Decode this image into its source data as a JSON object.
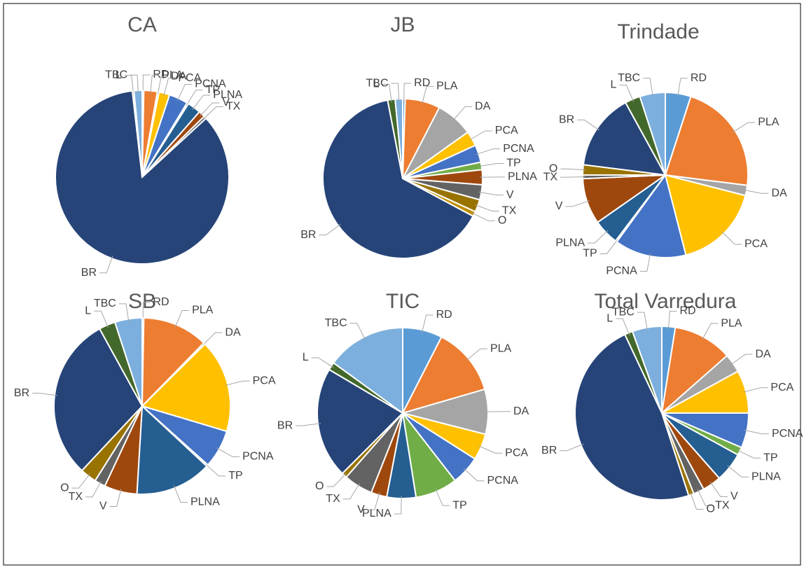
{
  "chart_data": [
    {
      "type": "pie",
      "title": "CA",
      "categories": [
        "RD",
        "PLA",
        "DA",
        "PCA",
        "PCNA",
        "TP",
        "PLNA",
        "V",
        "TX",
        "BR",
        "L",
        "TBC"
      ],
      "values": [
        0.3,
        2.5,
        0.3,
        2,
        3.5,
        0.3,
        2.5,
        1.2,
        0.5,
        84.6,
        0.3,
        1.5
      ],
      "colors": [
        "#5b9bd5",
        "#ed7d31",
        "#a5a5a5",
        "#ffc000",
        "#4472c4",
        "#70ad47",
        "#255e91",
        "#9e480e",
        "#636363",
        "#264478",
        "#43682b",
        "#7cafdd"
      ]
    },
    {
      "type": "pie",
      "title": "JB",
      "categories": [
        "RD",
        "PLA",
        "DA",
        "PCA",
        "PCNA",
        "TP",
        "PLNA",
        "V",
        "TX",
        "O",
        "BR",
        "L",
        "TBC"
      ],
      "values": [
        0.5,
        7,
        7.5,
        3,
        3.5,
        1.5,
        3,
        3,
        2.5,
        1,
        63.5,
        1.5,
        1.5
      ],
      "colors": [
        "#5b9bd5",
        "#ed7d31",
        "#a5a5a5",
        "#ffc000",
        "#4472c4",
        "#70ad47",
        "#9e480e",
        "#636363",
        "#997300",
        "#bf8f00",
        "#264478",
        "#43682b",
        "#7cafdd"
      ]
    },
    {
      "type": "pie",
      "title": "Trindade",
      "categories": [
        "RD",
        "PLA",
        "DA",
        "PCA",
        "PCNA",
        "TP",
        "PLNA",
        "V",
        "TX",
        "O",
        "BR",
        "L",
        "TBC"
      ],
      "values": [
        5,
        22,
        2,
        17,
        14,
        0.3,
        5,
        9,
        0.7,
        2,
        15,
        3,
        5
      ],
      "colors": [
        "#5b9bd5",
        "#ed7d31",
        "#a5a5a5",
        "#ffc000",
        "#4472c4",
        "#70ad47",
        "#255e91",
        "#9e480e",
        "#636363",
        "#997300",
        "#264478",
        "#43682b",
        "#7cafdd"
      ]
    },
    {
      "type": "pie",
      "title": "SB",
      "categories": [
        "RD",
        "PLA",
        "DA",
        "PCA",
        "PCNA",
        "TP",
        "PLNA",
        "V",
        "TX",
        "O",
        "BR",
        "L",
        "TBC"
      ],
      "values": [
        0.3,
        12,
        0.3,
        17,
        7,
        0.3,
        14,
        6,
        2,
        3,
        30,
        3,
        5
      ],
      "colors": [
        "#5b9bd5",
        "#ed7d31",
        "#a5a5a5",
        "#ffc000",
        "#4472c4",
        "#70ad47",
        "#255e91",
        "#9e480e",
        "#636363",
        "#997300",
        "#264478",
        "#43682b",
        "#7cafdd"
      ]
    },
    {
      "type": "pie",
      "title": "TIC",
      "categories": [
        "RD",
        "PLA",
        "DA",
        "PCA",
        "PCNA",
        "TP",
        "PLNA",
        "V",
        "TX",
        "O",
        "BR",
        "L",
        "TBC"
      ],
      "values": [
        7.5,
        13,
        8.5,
        5,
        5.5,
        8,
        5.5,
        3,
        5.5,
        1,
        21,
        1.5,
        15
      ],
      "colors": [
        "#5b9bd5",
        "#ed7d31",
        "#a5a5a5",
        "#ffc000",
        "#4472c4",
        "#70ad47",
        "#255e91",
        "#9e480e",
        "#636363",
        "#997300",
        "#264478",
        "#43682b",
        "#7cafdd"
      ]
    },
    {
      "type": "pie",
      "title": "Total Varredura",
      "categories": [
        "RD",
        "PLA",
        "DA",
        "PCA",
        "PCNA",
        "TP",
        "PLNA",
        "V",
        "TX",
        "O",
        "BR",
        "L",
        "TBC"
      ],
      "values": [
        2.5,
        11,
        3.5,
        8,
        6.5,
        1.5,
        5.5,
        3.5,
        2,
        1,
        48,
        1.5,
        5.5
      ],
      "colors": [
        "#5b9bd5",
        "#ed7d31",
        "#a5a5a5",
        "#ffc000",
        "#4472c4",
        "#70ad47",
        "#255e91",
        "#9e480e",
        "#636363",
        "#997300",
        "#264478",
        "#43682b",
        "#7cafdd"
      ]
    }
  ]
}
